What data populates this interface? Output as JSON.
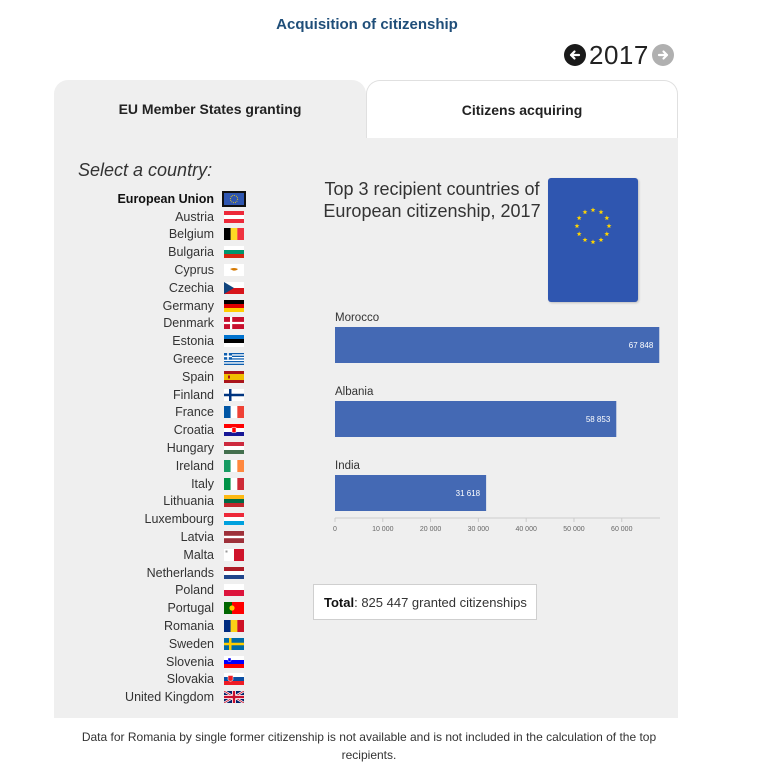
{
  "header": {
    "title": "Acquisition of citizenship"
  },
  "year_nav": {
    "year": "2017",
    "prev_icon": "arrow-left-icon",
    "next_icon": "arrow-right-icon"
  },
  "tabs": [
    {
      "label": "EU Member States granting",
      "active": true
    },
    {
      "label": "Citizens acquiring",
      "active": false
    }
  ],
  "sidebar": {
    "label": "Select a country:",
    "countries": [
      {
        "name": "European Union",
        "flag": "eu",
        "selected": true
      },
      {
        "name": "Austria",
        "flag": "at"
      },
      {
        "name": "Belgium",
        "flag": "be"
      },
      {
        "name": "Bulgaria",
        "flag": "bg"
      },
      {
        "name": "Cyprus",
        "flag": "cy"
      },
      {
        "name": "Czechia",
        "flag": "cz"
      },
      {
        "name": "Germany",
        "flag": "de"
      },
      {
        "name": "Denmark",
        "flag": "dk"
      },
      {
        "name": "Estonia",
        "flag": "ee"
      },
      {
        "name": "Greece",
        "flag": "gr"
      },
      {
        "name": "Spain",
        "flag": "es"
      },
      {
        "name": "Finland",
        "flag": "fi"
      },
      {
        "name": "France",
        "flag": "fr"
      },
      {
        "name": "Croatia",
        "flag": "hr"
      },
      {
        "name": "Hungary",
        "flag": "hu"
      },
      {
        "name": "Ireland",
        "flag": "ie"
      },
      {
        "name": "Italy",
        "flag": "it"
      },
      {
        "name": "Lithuania",
        "flag": "lt"
      },
      {
        "name": "Luxembourg",
        "flag": "lu"
      },
      {
        "name": "Latvia",
        "flag": "lv"
      },
      {
        "name": "Malta",
        "flag": "mt"
      },
      {
        "name": "Netherlands",
        "flag": "nl"
      },
      {
        "name": "Poland",
        "flag": "pl"
      },
      {
        "name": "Portugal",
        "flag": "pt"
      },
      {
        "name": "Romania",
        "flag": "ro"
      },
      {
        "name": "Sweden",
        "flag": "se"
      },
      {
        "name": "Slovenia",
        "flag": "si"
      },
      {
        "name": "Slovakia",
        "flag": "sk"
      },
      {
        "name": "United Kingdom",
        "flag": "uk"
      }
    ]
  },
  "main": {
    "chart_title": "Top 3 recipient countries of European citizenship, 2017",
    "passport_icon": "eu-passport-icon",
    "total_label": "Total",
    "total_text": ": 825 447 granted citizenships",
    "note": "Data for Romania by single former citizenship is not available and is not included in the calculation of the top recipients."
  },
  "colors": {
    "bar": "#4469b4",
    "title": "#1f4e79",
    "panel": "#efefef",
    "passport": "#2f56b0",
    "star": "#ffd500"
  },
  "chart_data": {
    "type": "bar",
    "orientation": "horizontal",
    "categories": [
      "Morocco",
      "Albania",
      "India"
    ],
    "values": [
      67848,
      58853,
      31618
    ],
    "value_labels": [
      "67 848",
      "58 853",
      "31 618"
    ],
    "xlim": [
      0,
      68000
    ],
    "xticks": [
      0,
      10000,
      20000,
      30000,
      40000,
      50000,
      60000
    ],
    "xtick_labels": [
      "0",
      "10 000",
      "20 000",
      "30 000",
      "40 000",
      "50 000",
      "60 000"
    ],
    "title": "Top 3 recipient countries of European citizenship, 2017",
    "xlabel": "",
    "ylabel": ""
  }
}
